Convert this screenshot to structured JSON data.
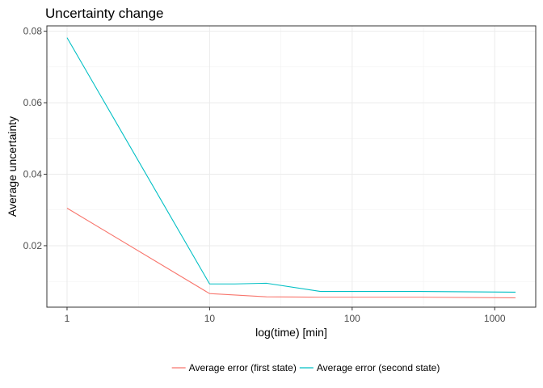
{
  "chart_data": {
    "type": "line",
    "title": "Uncertainty change",
    "xlabel": "log(time) [min]",
    "ylabel": "Average uncertainty",
    "x_scale": "log10",
    "xlim": [
      1,
      1400
    ],
    "ylim": [
      0.0028,
      0.0815
    ],
    "x_ticks": [
      1,
      10,
      100,
      1000
    ],
    "x_tick_labels": [
      "1",
      "10",
      "100",
      "1000"
    ],
    "y_ticks": [
      0.02,
      0.04,
      0.06,
      0.08
    ],
    "y_tick_labels": [
      "0.02",
      "0.04",
      "0.06",
      "0.08"
    ],
    "grid": true,
    "legend_position": "bottom",
    "series": [
      {
        "name": "Average error (first state)",
        "color": "#F8766D",
        "x": [
          1,
          10,
          15,
          25,
          60,
          300,
          1400
        ],
        "y": [
          0.0305,
          0.0066,
          0.0062,
          0.0057,
          0.0056,
          0.0056,
          0.0054
        ]
      },
      {
        "name": "Average error (second state)",
        "color": "#00BFC4",
        "x": [
          1,
          10,
          15,
          25,
          60,
          300,
          1400
        ],
        "y": [
          0.0782,
          0.0093,
          0.0093,
          0.0095,
          0.0072,
          0.0072,
          0.007
        ]
      }
    ]
  }
}
